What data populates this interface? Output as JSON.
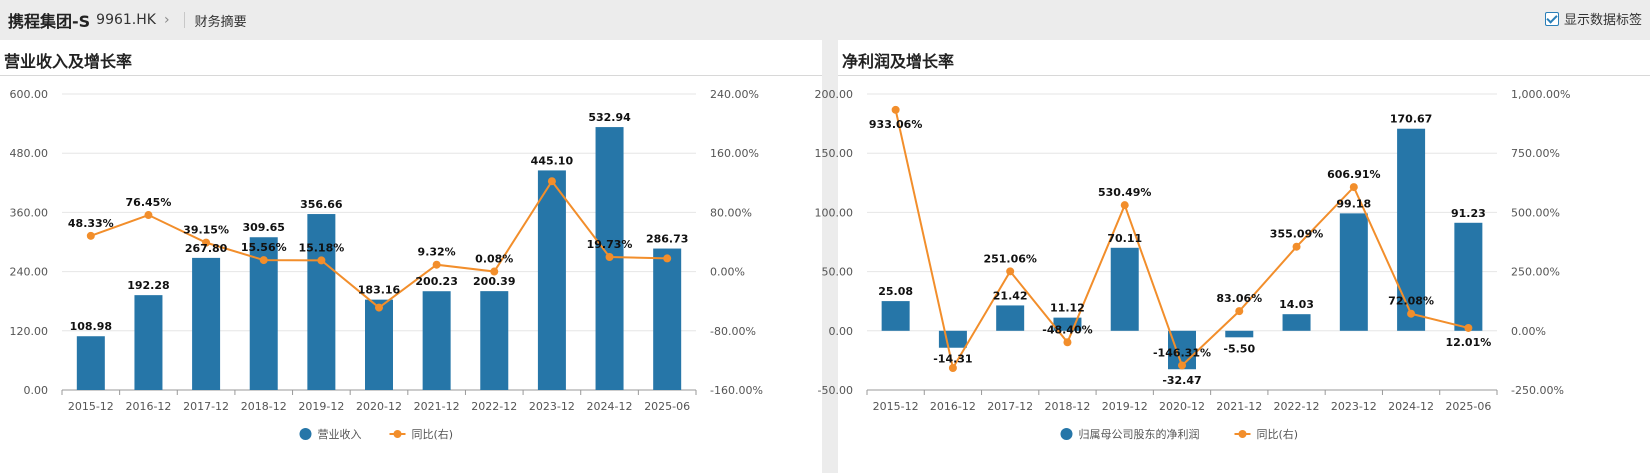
{
  "header": {
    "company": "携程集团-S",
    "code": "9961.HK",
    "breadcrumb": "财务摘要",
    "toggle_label": "显示数据标签",
    "toggle_checked": true
  },
  "colors": {
    "bar": "#2676a8",
    "line": "#f28e2b"
  },
  "chart_data": [
    {
      "type": "bar",
      "title": "营业收入及增长率",
      "categories": [
        "2015-12",
        "2016-12",
        "2017-12",
        "2018-12",
        "2019-12",
        "2020-12",
        "2021-12",
        "2022-12",
        "2023-12",
        "2024-12",
        "2025-06"
      ],
      "series": [
        {
          "name": "营业收入",
          "type": "bar",
          "axis": "left",
          "values": [
            108.98,
            192.28,
            267.8,
            309.65,
            356.66,
            183.16,
            200.23,
            200.39,
            445.1,
            532.94,
            286.73
          ]
        },
        {
          "name": "同比(右)",
          "type": "line",
          "axis": "right",
          "values": [
            48.33,
            76.45,
            39.15,
            15.56,
            15.18,
            -48.6,
            9.32,
            0.08,
            122.15,
            19.73,
            17.8
          ],
          "labels": [
            "48.33%",
            "76.45%",
            "39.15%",
            "15.56%",
            "15.18%",
            "",
            "9.32%",
            "0.08%",
            "",
            "19.73%",
            ""
          ]
        }
      ],
      "ylim_left": [
        0,
        600
      ],
      "yticks_left": [
        "0.00",
        "120.00",
        "240.00",
        "360.00",
        "480.00",
        "600.00"
      ],
      "ylim_right": [
        -160,
        240
      ],
      "yticks_right": [
        "-160.00%",
        "-80.00%",
        "0.00%",
        "80.00%",
        "160.00%",
        "240.00%"
      ],
      "legend_position": "bottom-center",
      "grid": true
    },
    {
      "type": "bar",
      "title": "净利润及增长率",
      "categories": [
        "2015-12",
        "2016-12",
        "2017-12",
        "2018-12",
        "2019-12",
        "2020-12",
        "2021-12",
        "2022-12",
        "2023-12",
        "2024-12",
        "2025-06"
      ],
      "series": [
        {
          "name": "归属母公司股东的净利润",
          "type": "bar",
          "axis": "left",
          "values": [
            25.08,
            -14.31,
            21.42,
            11.12,
            70.11,
            -32.47,
            -5.5,
            14.03,
            99.18,
            170.67,
            91.23
          ]
        },
        {
          "name": "同比(右)",
          "type": "line",
          "axis": "right",
          "values": [
            933.06,
            -157.06,
            251.06,
            -48.4,
            530.49,
            -146.31,
            83.06,
            355.09,
            606.91,
            72.08,
            12.01
          ],
          "labels": [
            "933.06%",
            "",
            "251.06%",
            "-48.40%",
            "530.49%",
            "-146.31%",
            "83.06%",
            "355.09%",
            "606.91%",
            "72.08%",
            "12.01%"
          ]
        }
      ],
      "ylim_left": [
        -50,
        200
      ],
      "yticks_left": [
        "-50.00",
        "0.00",
        "50.00",
        "100.00",
        "150.00",
        "200.00"
      ],
      "ylim_right": [
        -250,
        1000
      ],
      "yticks_right": [
        "-250.00%",
        "0.00%",
        "250.00%",
        "500.00%",
        "750.00%",
        "1,000.00%"
      ],
      "legend_position": "bottom-center",
      "grid": true
    }
  ]
}
